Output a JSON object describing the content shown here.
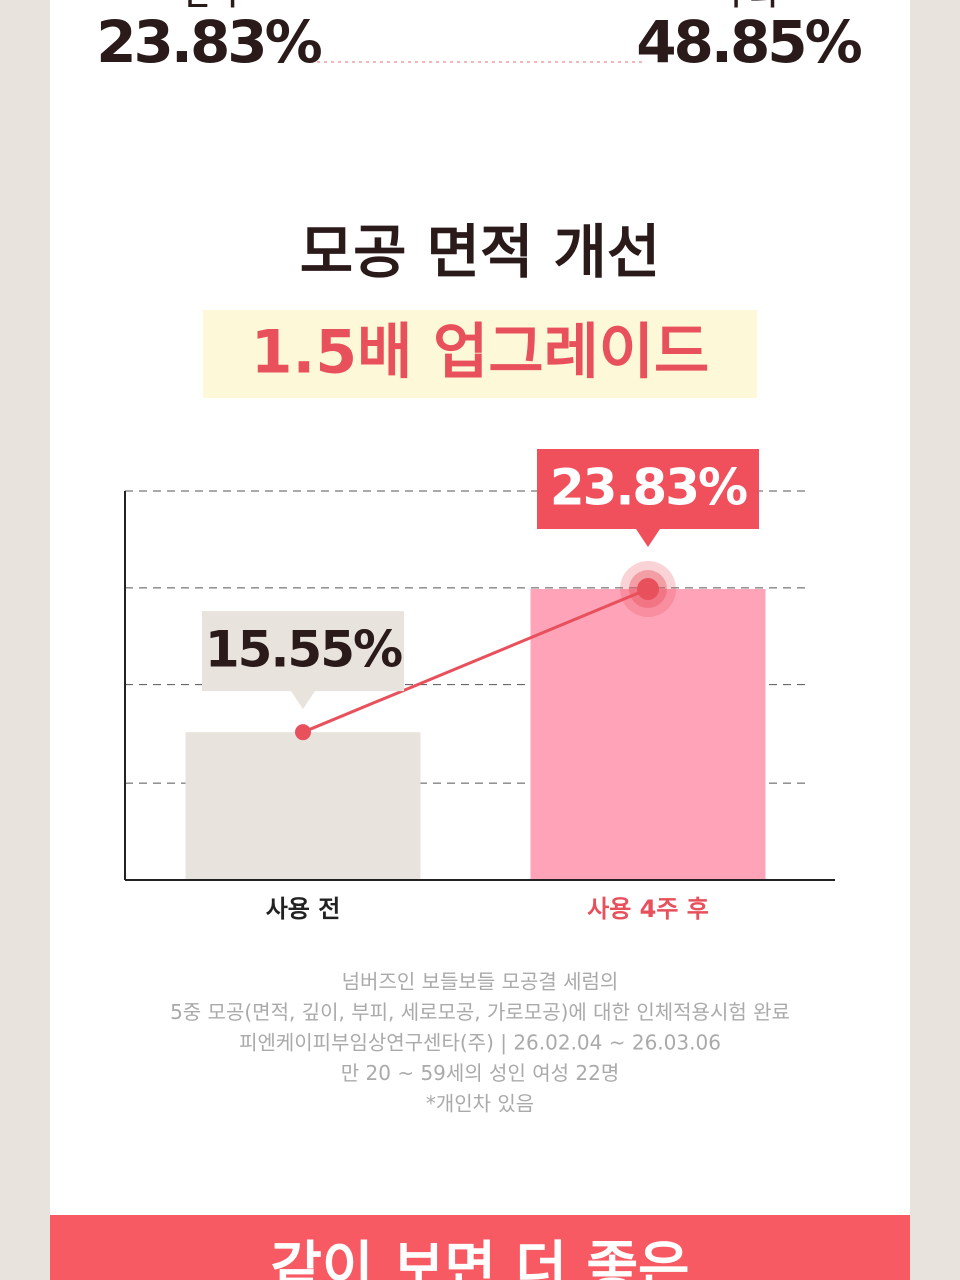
{
  "header": {
    "stats": [
      {
        "label": "면적",
        "value": "23.83%"
      },
      {
        "label": "부피",
        "value": "48.85%"
      }
    ]
  },
  "headline": {
    "title": "모공 면적 개선",
    "highlight": "1.5배 업그레이드"
  },
  "chart_data": {
    "type": "bar",
    "categories": [
      "사용 전",
      "사용 4주 후"
    ],
    "values": [
      15.55,
      23.83
    ],
    "value_labels": [
      "15.55%",
      "23.83%"
    ],
    "colors": [
      "#e8e3dc",
      "#ffa3b8"
    ],
    "category_colors": [
      "#222222",
      "#e8505b"
    ],
    "label_box_colors": [
      "#e8e3dc",
      "#f0505c"
    ],
    "label_text_colors": [
      "#2a1a1a",
      "#ffffff"
    ],
    "line_color": "#e8505b",
    "ylim": [
      7,
      29.5
    ],
    "yticks": [
      12.6,
      18.3,
      23.9,
      29.5
    ],
    "grid": true,
    "show_tick_labels": false
  },
  "footnotes": [
    "넘버즈인 보들보들 모공결 세럼의",
    "5중 모공(면적, 깊이, 부피, 세로모공, 가로모공)에 대한 인체적용시험 완료",
    "피엔케이피부임상연구센타(주) | 26.02.04 ~ 26.03.06",
    "만 20 ~ 59세의 성인 여성 22명",
    "*개인차 있음"
  ],
  "banner": {
    "text": "같이 보면 더 좋은"
  }
}
